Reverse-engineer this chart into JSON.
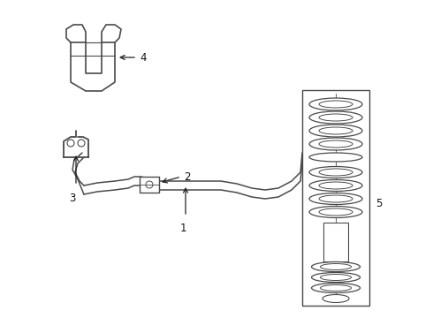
{
  "bg_color": "#ffffff",
  "line_color": "#4a4a4a",
  "fig_width": 4.9,
  "fig_height": 3.6,
  "dpi": 100
}
